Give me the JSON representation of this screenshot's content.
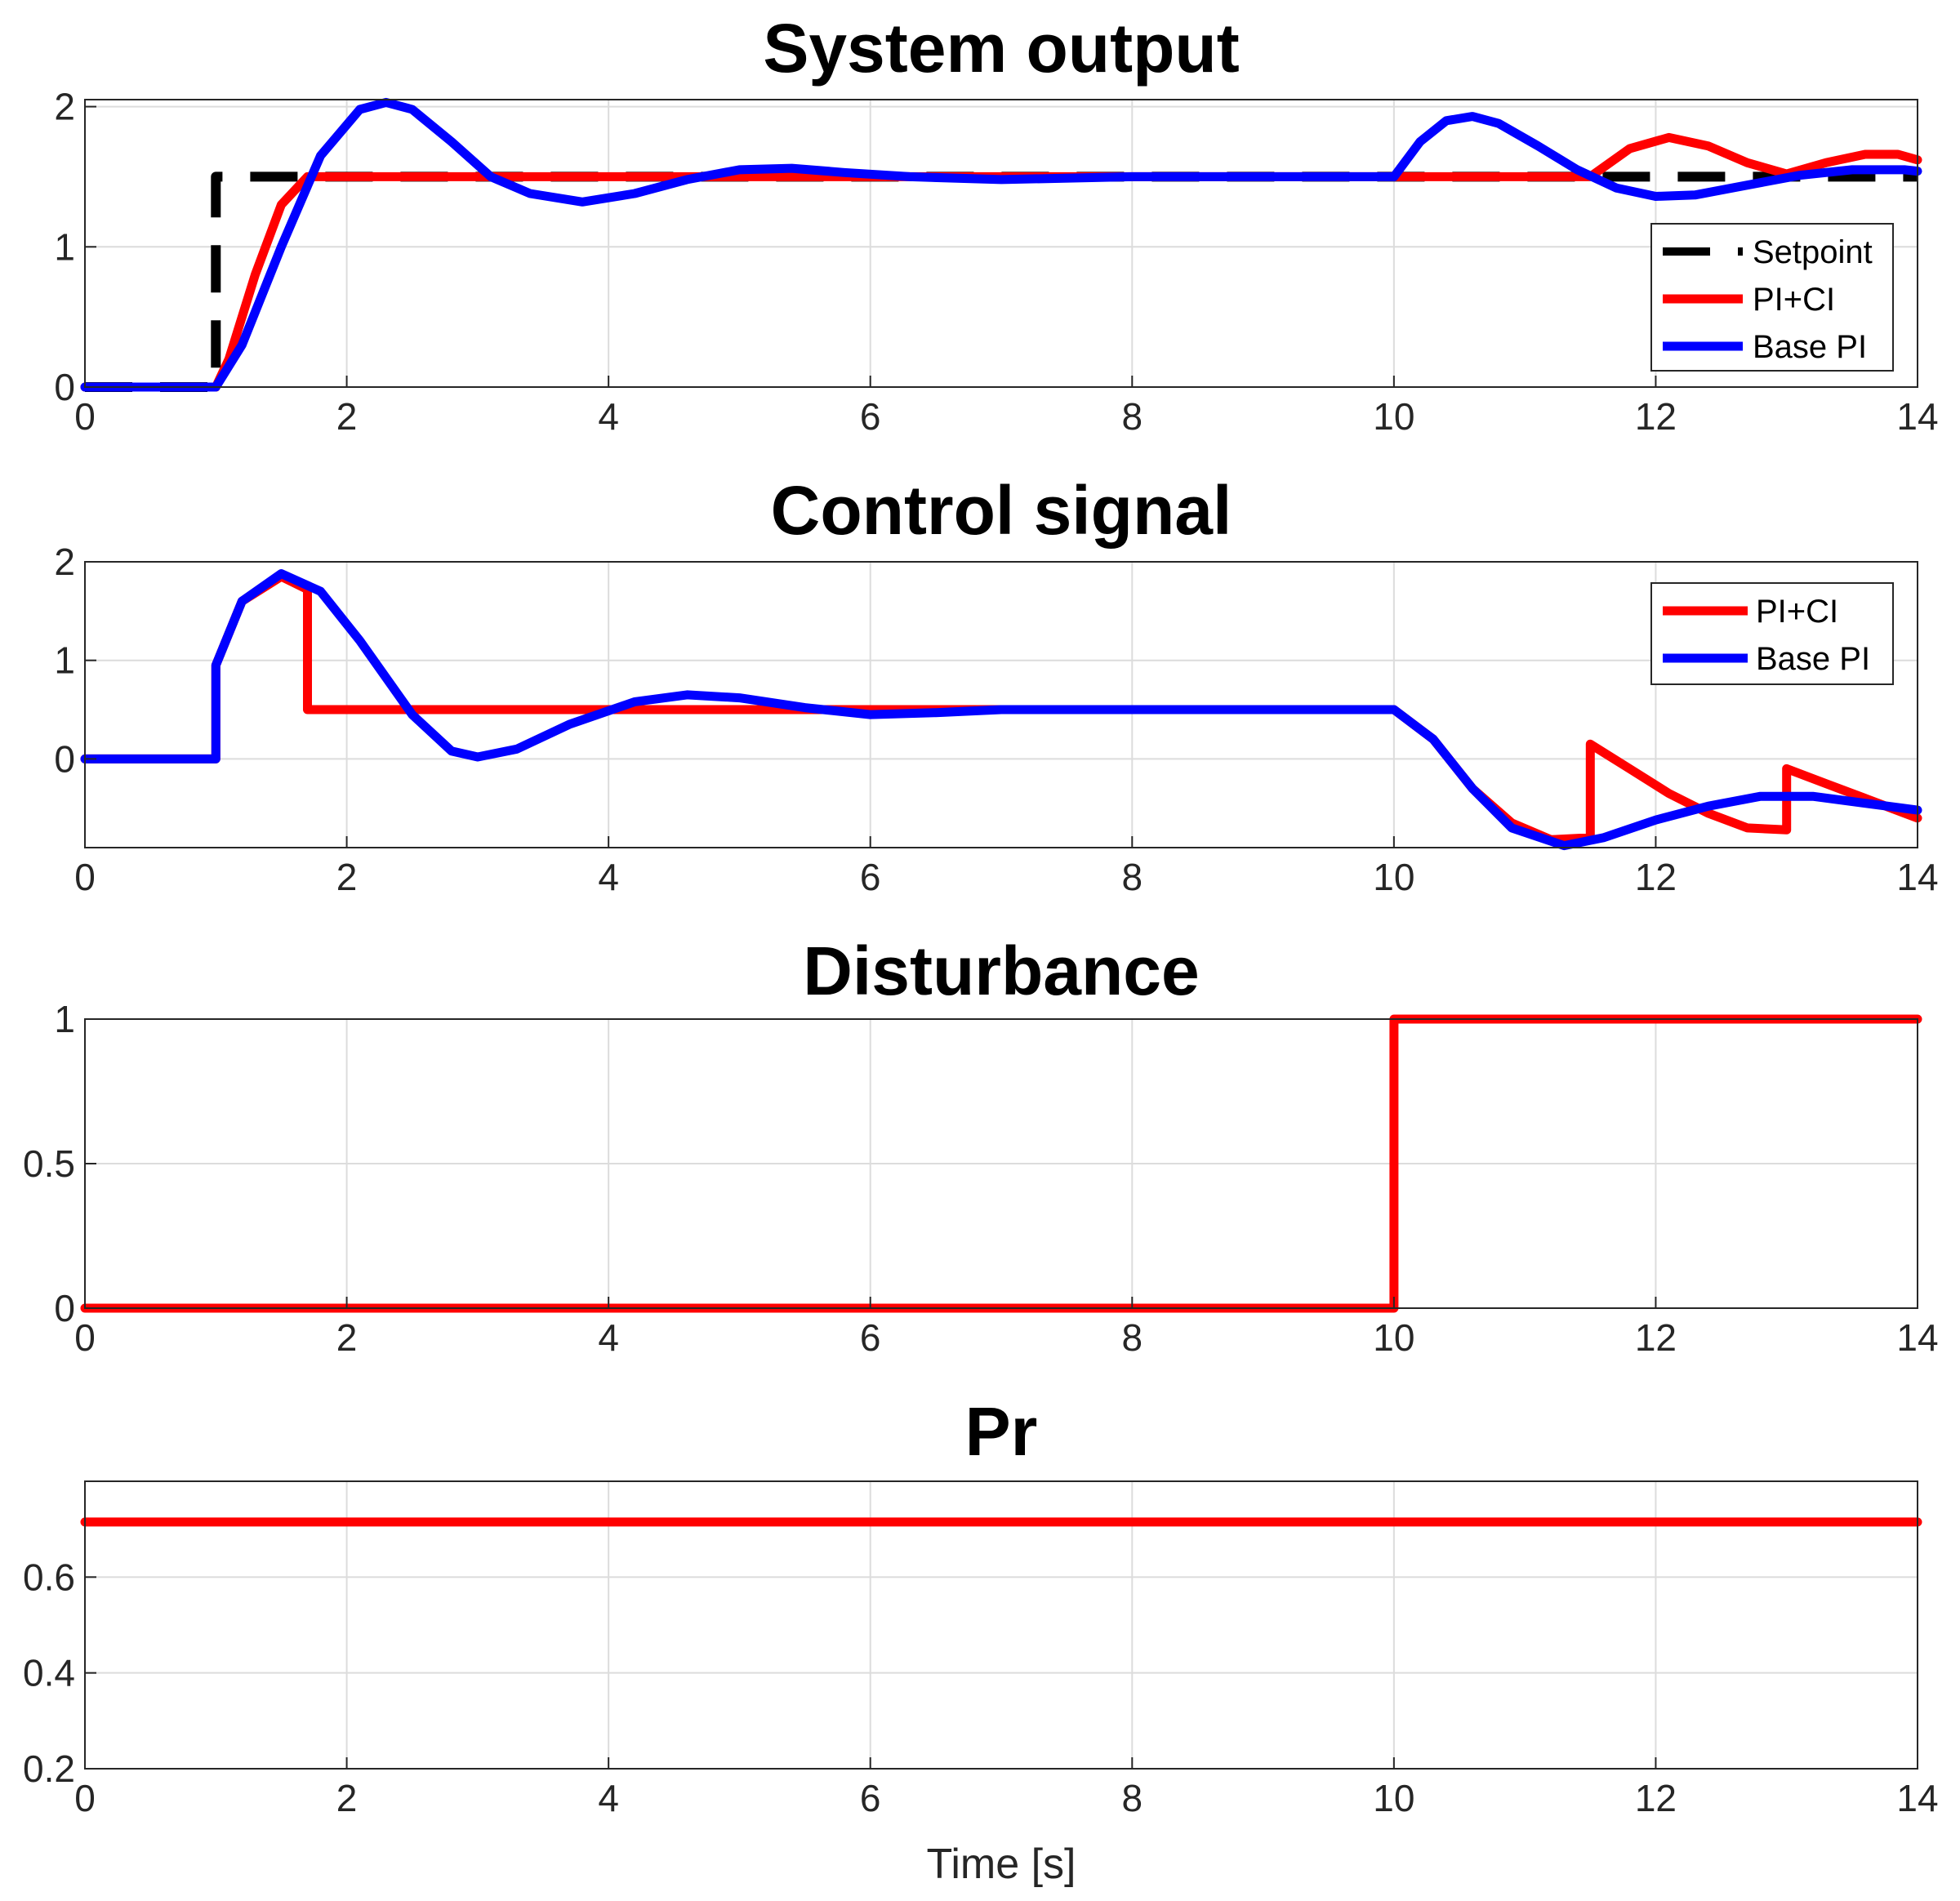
{
  "chart_data": [
    {
      "type": "line",
      "title": "System output",
      "xlabel": "",
      "ylabel": "",
      "xlim": [
        0,
        14
      ],
      "ylim": [
        0,
        2.05
      ],
      "xticks": [
        0,
        2,
        4,
        6,
        8,
        10,
        12,
        14
      ],
      "yticks": [
        0,
        1,
        2
      ],
      "grid": true,
      "legend": {
        "position": "right",
        "entries": [
          "Setpoint",
          "PI+CI",
          "Base PI"
        ]
      },
      "series": [
        {
          "name": "Setpoint",
          "color": "#000000",
          "dash": true,
          "x": [
            0,
            1.0,
            1.0,
            14
          ],
          "y": [
            0,
            0,
            1.5,
            1.5
          ]
        },
        {
          "name": "PI+CI",
          "color": "#ff0000",
          "x": [
            0,
            1.0,
            1.1,
            1.3,
            1.5,
            1.7,
            10.0,
            11.5,
            11.8,
            12.1,
            12.4,
            12.7,
            13.0,
            13.3,
            13.6,
            13.85,
            14.0
          ],
          "y": [
            0,
            0,
            0.2,
            0.8,
            1.3,
            1.5,
            1.5,
            1.5,
            1.7,
            1.78,
            1.72,
            1.6,
            1.52,
            1.6,
            1.66,
            1.66,
            1.62
          ]
        },
        {
          "name": "Base PI",
          "color": "#0000ff",
          "x": [
            0,
            1.0,
            1.2,
            1.5,
            1.8,
            2.1,
            2.3,
            2.5,
            2.8,
            3.1,
            3.4,
            3.8,
            4.2,
            4.6,
            5.0,
            5.4,
            5.8,
            6.3,
            7.0,
            8.0,
            9.0,
            10.0,
            10.2,
            10.4,
            10.6,
            10.8,
            11.1,
            11.4,
            11.7,
            12.0,
            12.3,
            12.7,
            13.1,
            13.5,
            13.9,
            14.0
          ],
          "y": [
            0,
            0,
            0.3,
            1.0,
            1.65,
            1.98,
            2.03,
            1.98,
            1.75,
            1.5,
            1.38,
            1.32,
            1.38,
            1.48,
            1.55,
            1.56,
            1.53,
            1.5,
            1.48,
            1.5,
            1.5,
            1.5,
            1.75,
            1.9,
            1.93,
            1.88,
            1.72,
            1.55,
            1.42,
            1.36,
            1.37,
            1.44,
            1.51,
            1.55,
            1.55,
            1.54
          ]
        }
      ]
    },
    {
      "type": "line",
      "title": "Control signal",
      "xlabel": "",
      "ylabel": "",
      "xlim": [
        0,
        14
      ],
      "ylim": [
        -0.9,
        2.0
      ],
      "xticks": [
        0,
        2,
        4,
        6,
        8,
        10,
        12,
        14
      ],
      "yticks": [
        0,
        1,
        2
      ],
      "grid": true,
      "legend": {
        "position": "top-right",
        "entries": [
          "PI+CI",
          "Base PI"
        ]
      },
      "series": [
        {
          "name": "PI+CI",
          "color": "#ff0000",
          "x": [
            0,
            1.0,
            1.0,
            1.2,
            1.5,
            1.7,
            1.7,
            10.0,
            10.3,
            10.6,
            10.9,
            11.2,
            11.5,
            11.5,
            11.8,
            12.1,
            12.4,
            12.7,
            13.0,
            13.0,
            13.3,
            13.6,
            13.9,
            14.0
          ],
          "y": [
            0,
            0,
            0.95,
            1.6,
            1.85,
            1.72,
            0.5,
            0.5,
            0.2,
            -0.3,
            -0.65,
            -0.82,
            -0.8,
            0.15,
            -0.1,
            -0.35,
            -0.55,
            -0.7,
            -0.72,
            -0.1,
            -0.25,
            -0.4,
            -0.55,
            -0.6
          ]
        },
        {
          "name": "Base PI",
          "color": "#0000ff",
          "x": [
            0,
            1.0,
            1.0,
            1.2,
            1.5,
            1.8,
            2.1,
            2.5,
            2.8,
            3.0,
            3.3,
            3.7,
            4.2,
            4.6,
            5.0,
            5.5,
            6.0,
            6.5,
            7.0,
            8.0,
            9.0,
            10.0,
            10.3,
            10.6,
            10.9,
            11.3,
            11.6,
            12.0,
            12.4,
            12.8,
            13.2,
            13.6,
            14.0
          ],
          "y": [
            0,
            0,
            0.95,
            1.6,
            1.88,
            1.7,
            1.2,
            0.45,
            0.08,
            0.02,
            0.1,
            0.35,
            0.58,
            0.65,
            0.62,
            0.52,
            0.45,
            0.47,
            0.5,
            0.5,
            0.5,
            0.5,
            0.2,
            -0.3,
            -0.7,
            -0.88,
            -0.8,
            -0.62,
            -0.48,
            -0.38,
            -0.38,
            -0.45,
            -0.52
          ]
        }
      ]
    },
    {
      "type": "line",
      "title": "Disturbance",
      "xlabel": "",
      "ylabel": "",
      "xlim": [
        0,
        14
      ],
      "ylim": [
        0,
        1
      ],
      "xticks": [
        0,
        2,
        4,
        6,
        8,
        10,
        12,
        14
      ],
      "yticks": [
        0,
        0.5,
        1
      ],
      "grid": true,
      "series": [
        {
          "name": "Disturbance",
          "color": "#ff0000",
          "x": [
            0,
            10.0,
            10.0,
            14
          ],
          "y": [
            0,
            0,
            1,
            1
          ]
        }
      ]
    },
    {
      "type": "line",
      "title": "Pr",
      "xlabel": "Time [s]",
      "ylabel": "",
      "xlim": [
        0,
        14
      ],
      "ylim": [
        0.2,
        0.8
      ],
      "xticks": [
        0,
        2,
        4,
        6,
        8,
        10,
        12,
        14
      ],
      "yticks": [
        0.2,
        0.4,
        0.6
      ],
      "grid": true,
      "series": [
        {
          "name": "Pr",
          "color": "#ff0000",
          "x": [
            0,
            14
          ],
          "y": [
            0.715,
            0.715
          ]
        }
      ]
    }
  ]
}
